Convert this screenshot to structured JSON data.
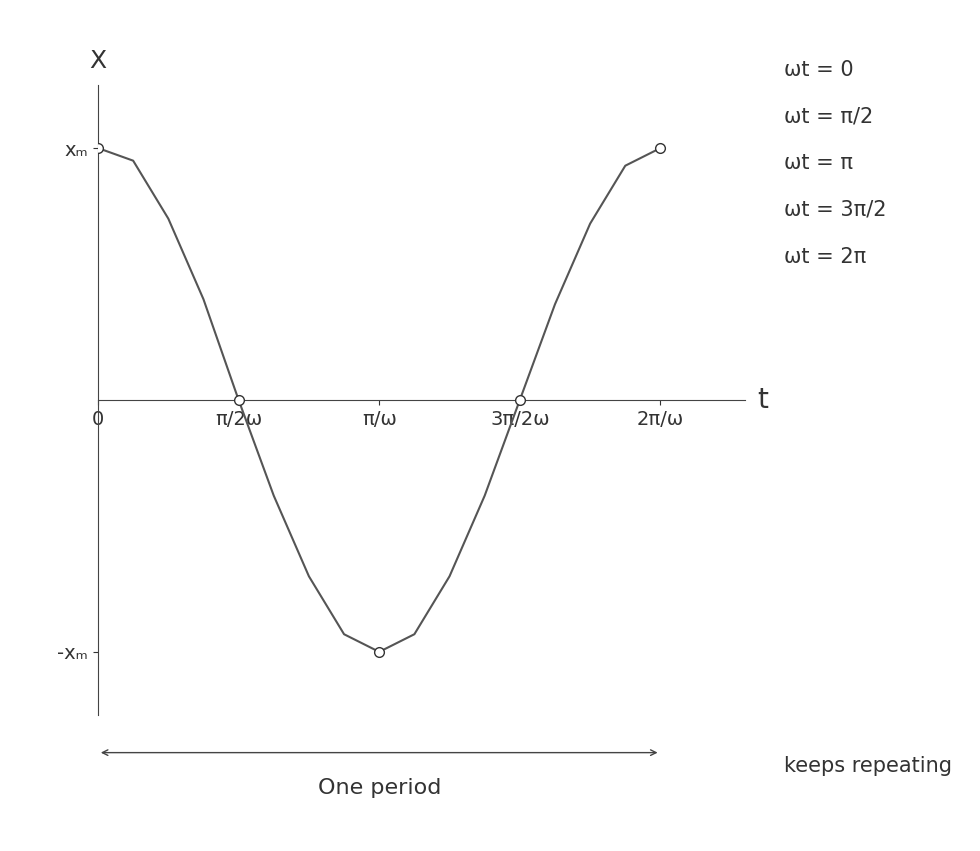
{
  "chart_data": {
    "type": "line",
    "y_label": "X",
    "x_label": "t",
    "x": [
      0,
      0.125,
      0.25,
      0.375,
      0.5,
      0.625,
      0.75,
      0.875,
      1,
      1.125,
      1.25,
      1.375,
      1.5,
      1.625,
      1.75,
      1.875,
      2
    ],
    "series": [
      {
        "values": [
          1,
          0.95,
          0.72,
          0.4,
          0,
          -0.38,
          -0.7,
          -0.93,
          -1,
          -0.93,
          -0.7,
          -0.38,
          0,
          0.38,
          0.7,
          0.93,
          1
        ],
        "color": "#555555",
        "line_style": "solid"
      },
      {
        "x": [
          0,
          0.5,
          1,
          1.5,
          2
        ],
        "values": [
          1,
          0,
          -1,
          0,
          1
        ],
        "color": "#333333",
        "marker": "o",
        "line_style": "none"
      }
    ],
    "xlim": [
      0,
      2.3
    ],
    "ylim": [
      -1.25,
      1.25
    ],
    "xticks": [
      0,
      {
        "value": 0.5,
        "label": "π/2ω"
      },
      {
        "value": 1,
        "label": "π/ω"
      },
      {
        "value": 1.5,
        "label": "3π/2ω"
      },
      {
        "value": 2,
        "label": "2π/ω"
      }
    ],
    "yticks": [
      {
        "value": -1,
        "label": "-xₘ"
      },
      {
        "value": 1,
        "label": "xₘ"
      }
    ],
    "annotations": [
      "ωt = 0",
      "ωt = π/2",
      "ωt = π",
      "ωt = 3π/2",
      "ωt = 2π"
    ],
    "period_label": "One period",
    "note": "keeps repeating"
  }
}
